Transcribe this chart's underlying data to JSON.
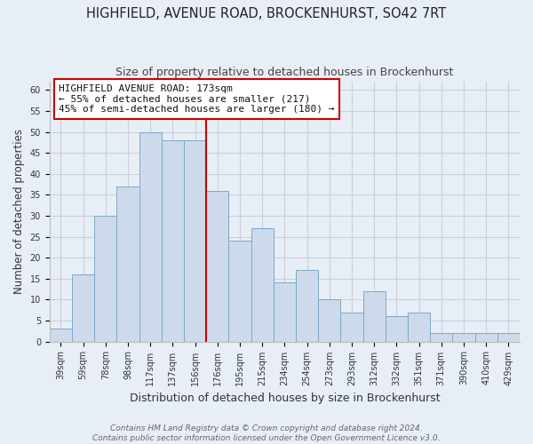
{
  "title": "HIGHFIELD, AVENUE ROAD, BROCKENHURST, SO42 7RT",
  "subtitle": "Size of property relative to detached houses in Brockenhurst",
  "xlabel": "Distribution of detached houses by size in Brockenhurst",
  "ylabel": "Number of detached properties",
  "categories": [
    "39sqm",
    "59sqm",
    "78sqm",
    "98sqm",
    "117sqm",
    "137sqm",
    "156sqm",
    "176sqm",
    "195sqm",
    "215sqm",
    "234sqm",
    "254sqm",
    "273sqm",
    "293sqm",
    "312sqm",
    "332sqm",
    "351sqm",
    "371sqm",
    "390sqm",
    "410sqm",
    "429sqm"
  ],
  "values": [
    3,
    16,
    30,
    37,
    50,
    48,
    48,
    36,
    24,
    27,
    14,
    17,
    10,
    7,
    12,
    6,
    7,
    2,
    2,
    2,
    2
  ],
  "bar_color": "#cddaeb",
  "bar_edge_color": "#7aaac8",
  "bar_linewidth": 0.7,
  "highlight_bar_index": 7,
  "highlight_line_color": "#cc0000",
  "annotation_title": "HIGHFIELD AVENUE ROAD: 173sqm",
  "annotation_line1": "← 55% of detached houses are smaller (217)",
  "annotation_line2": "45% of semi-detached houses are larger (180) →",
  "annotation_box_facecolor": "#ffffff",
  "annotation_box_edgecolor": "#cc0000",
  "ylim": [
    0,
    62
  ],
  "yticks": [
    0,
    5,
    10,
    15,
    20,
    25,
    30,
    35,
    40,
    45,
    50,
    55,
    60
  ],
  "grid_color": "#c8d0dc",
  "background_color": "#e8eef5",
  "footer_line1": "Contains HM Land Registry data © Crown copyright and database right 2024.",
  "footer_line2": "Contains public sector information licensed under the Open Government Licence v3.0.",
  "title_fontsize": 10.5,
  "subtitle_fontsize": 9,
  "xlabel_fontsize": 9,
  "ylabel_fontsize": 8.5,
  "tick_fontsize": 7,
  "footer_fontsize": 6.5,
  "annotation_fontsize": 8
}
